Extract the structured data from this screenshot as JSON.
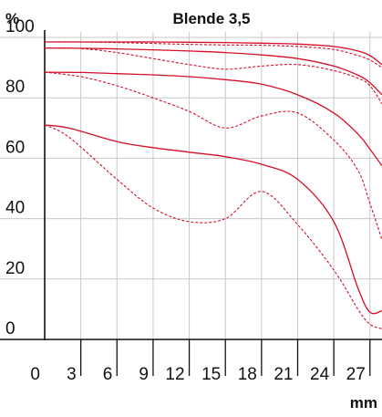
{
  "chart_data": {
    "type": "line",
    "title": "Blende 3,5",
    "ylabel": "%",
    "xlabel": "mm",
    "xlim": [
      0,
      28
    ],
    "ylim": [
      0,
      100
    ],
    "x_ticks": [
      "0",
      "3",
      "6",
      "9",
      "12",
      "15",
      "18",
      "21",
      "24",
      "27"
    ],
    "y_ticks": [
      "0",
      "20",
      "40",
      "60",
      "80",
      "100"
    ],
    "grid": true,
    "line_color": "#d40f28",
    "series": [
      {
        "style": "solid",
        "x": [
          0,
          3,
          6,
          9,
          12,
          15,
          18,
          21,
          24,
          26,
          27,
          28
        ],
        "y": [
          98.5,
          98.5,
          98.5,
          98.5,
          98.4,
          98.3,
          98.1,
          97.8,
          97,
          95.5,
          94,
          91
        ]
      },
      {
        "style": "dashed",
        "x": [
          0,
          3,
          6,
          9,
          12,
          15,
          18,
          21,
          24,
          26,
          27,
          28
        ],
        "y": [
          98.5,
          98.5,
          98.3,
          98,
          97.7,
          97.5,
          97.4,
          97,
          96,
          94,
          92.5,
          90
        ]
      },
      {
        "style": "solid",
        "x": [
          0,
          3,
          6,
          9,
          12,
          15,
          18,
          21,
          24,
          26,
          27,
          28
        ],
        "y": [
          96.5,
          96.4,
          96.2,
          95.9,
          95.5,
          95,
          94.2,
          93,
          90.5,
          87.5,
          85,
          81
        ]
      },
      {
        "style": "dashed",
        "x": [
          0,
          3,
          6,
          9,
          12,
          15,
          18,
          21,
          24,
          26,
          27,
          28
        ],
        "y": [
          96.5,
          96.3,
          95,
          93,
          91,
          89.5,
          90.5,
          91,
          89,
          86.5,
          84,
          78
        ]
      },
      {
        "style": "solid",
        "x": [
          0,
          3,
          6,
          9,
          12,
          15,
          18,
          21,
          24,
          26,
          27,
          28
        ],
        "y": [
          88.5,
          88.4,
          88,
          87.6,
          87,
          86,
          84.5,
          81,
          75,
          68,
          63,
          57.5
        ]
      },
      {
        "style": "dashed",
        "x": [
          0,
          3,
          6,
          9,
          12,
          15,
          18,
          21,
          24,
          26,
          27,
          28
        ],
        "y": [
          88.5,
          87,
          84,
          80,
          75.5,
          70,
          74,
          75,
          66,
          56,
          45,
          33
        ]
      },
      {
        "style": "solid",
        "x": [
          0,
          2,
          6,
          9,
          12,
          15,
          18,
          21,
          24,
          26,
          27,
          28
        ],
        "y": [
          71,
          70,
          65.5,
          63.5,
          62,
          60.5,
          58,
          53,
          39,
          17,
          9,
          9.5
        ]
      },
      {
        "style": "dashed",
        "x": [
          0,
          2,
          6,
          9,
          12,
          15,
          18,
          21,
          24,
          26,
          27,
          28
        ],
        "y": [
          71,
          67,
          53,
          43.5,
          39,
          40,
          49,
          38,
          23,
          10,
          5,
          3.5
        ]
      }
    ]
  }
}
